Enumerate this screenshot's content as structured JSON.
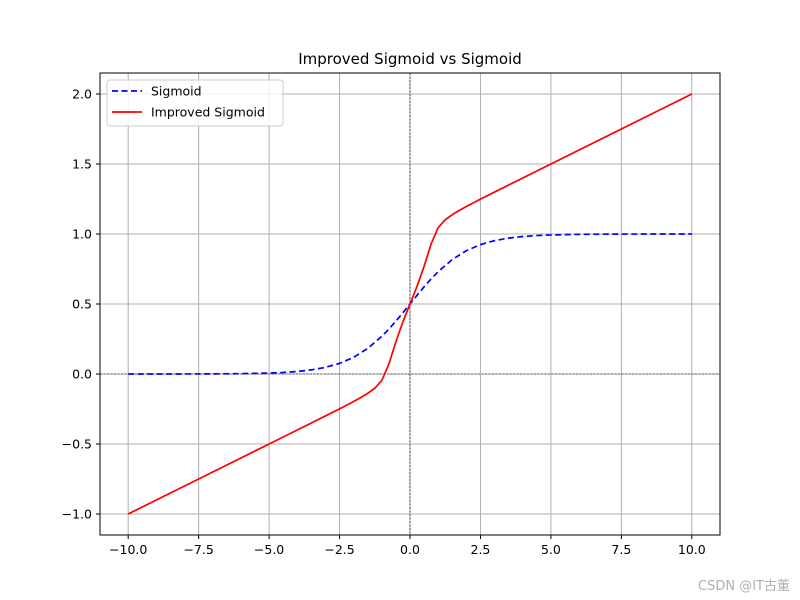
{
  "chart_data": {
    "type": "line",
    "title": "Improved Sigmoid vs Sigmoid",
    "xlabel": "",
    "ylabel": "",
    "xlim": [
      -11.0,
      11.0
    ],
    "ylim": [
      -1.15,
      2.15
    ],
    "x_ticks": [
      -10,
      -7.5,
      -5,
      -2.5,
      0,
      2.5,
      5,
      7.5,
      10
    ],
    "x_tick_labels": [
      "−10.0",
      "−7.5",
      "−5.0",
      "−2.5",
      "0.0",
      "2.5",
      "5.0",
      "7.5",
      "10.0"
    ],
    "y_ticks": [
      -1,
      -0.5,
      0,
      0.5,
      1,
      1.5,
      2
    ],
    "y_tick_labels": [
      "−1.0",
      "−0.5",
      "0.0",
      "0.5",
      "1.0",
      "1.5",
      "2.0"
    ],
    "grid": true,
    "zero_lines": true,
    "legend_position": "top-left",
    "series": [
      {
        "name": "Sigmoid",
        "color": "#0000ff",
        "style": "dashed",
        "x": [
          -10,
          -9,
          -8,
          -7,
          -6,
          -5,
          -4.5,
          -4,
          -3.5,
          -3,
          -2.5,
          -2,
          -1.5,
          -1,
          -0.75,
          -0.5,
          -0.25,
          0,
          0.25,
          0.5,
          0.75,
          1,
          1.5,
          2,
          2.5,
          3,
          3.5,
          4,
          4.5,
          5,
          6,
          7,
          8,
          9,
          10
        ],
        "y": [
          0.0,
          0.0001,
          0.0003,
          0.0009,
          0.0025,
          0.0067,
          0.011,
          0.018,
          0.0293,
          0.0474,
          0.0759,
          0.1192,
          0.1824,
          0.2689,
          0.3208,
          0.3775,
          0.4378,
          0.5,
          0.5622,
          0.6225,
          0.6792,
          0.7311,
          0.8176,
          0.8808,
          0.9241,
          0.9526,
          0.9707,
          0.982,
          0.989,
          0.9933,
          0.9975,
          0.9991,
          0.9997,
          0.9999,
          1.0
        ]
      },
      {
        "name": "Improved Sigmoid",
        "color": "#ff0000",
        "style": "solid",
        "x": [
          -10,
          -9,
          -8,
          -7,
          -6,
          -5,
          -4.5,
          -4,
          -3.5,
          -3,
          -2.5,
          -2,
          -1.75,
          -1.5,
          -1.25,
          -1,
          -0.75,
          -0.5,
          -0.25,
          0,
          0.25,
          0.5,
          0.75,
          1,
          1.25,
          1.5,
          1.75,
          2,
          2.5,
          3,
          3.5,
          4,
          4.5,
          5,
          6,
          7,
          8,
          9,
          10
        ],
        "y": [
          -1.0,
          -0.9,
          -0.8,
          -0.7,
          -0.6,
          -0.5,
          -0.45,
          -0.4,
          -0.3499,
          -0.2996,
          -0.2488,
          -0.1964,
          -0.1686,
          -0.1383,
          -0.1018,
          -0.0462,
          0.0707,
          0.2311,
          0.3738,
          0.5,
          0.6262,
          0.7689,
          0.9293,
          1.0462,
          1.1018,
          1.1383,
          1.1686,
          1.1964,
          1.2488,
          1.2996,
          1.3499,
          1.4,
          1.45,
          1.5,
          1.6,
          1.7,
          1.8,
          1.9,
          2.0
        ]
      }
    ]
  },
  "watermark": "CSDN @IT古董"
}
